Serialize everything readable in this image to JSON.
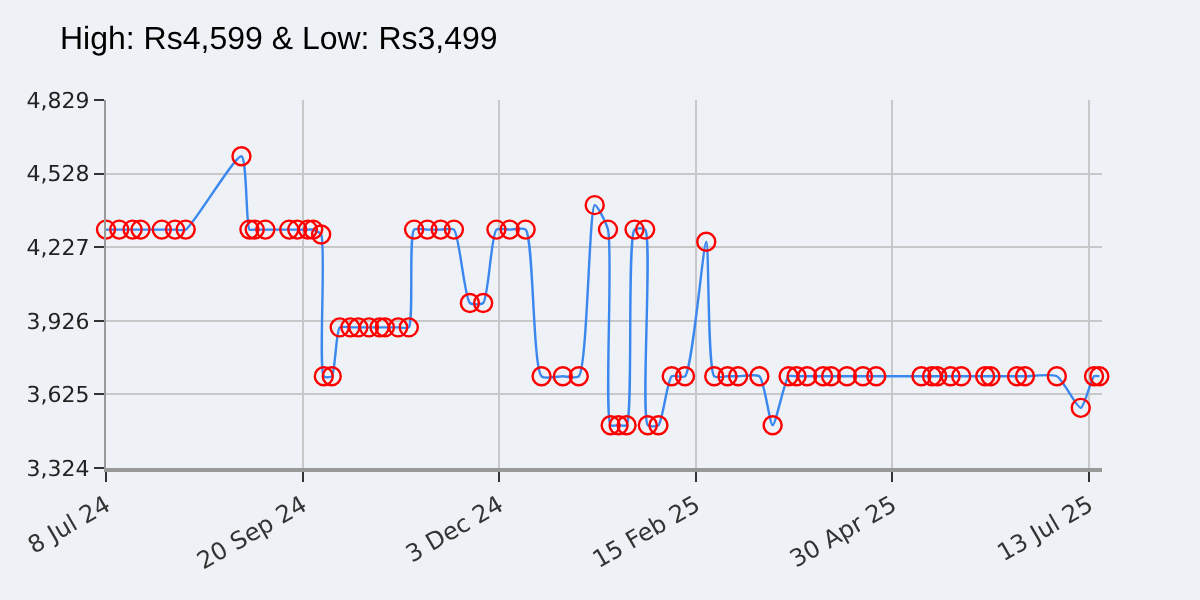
{
  "chart_data": {
    "type": "line",
    "title": "High: Rs4,599 & Low: Rs3,499",
    "x": [
      "2024-07-08",
      "2024-07-13",
      "2024-07-18",
      "2024-07-21",
      "2024-07-29",
      "2024-08-03",
      "2024-08-07",
      "2024-08-28",
      "2024-08-31",
      "2024-09-02",
      "2024-09-06",
      "2024-09-15",
      "2024-09-18",
      "2024-09-22",
      "2024-09-24",
      "2024-09-27",
      "2024-09-28",
      "2024-10-01",
      "2024-10-04",
      "2024-10-08",
      "2024-10-11",
      "2024-10-15",
      "2024-10-19",
      "2024-10-21",
      "2024-10-26",
      "2024-10-30",
      "2024-11-01",
      "2024-11-06",
      "2024-11-11",
      "2024-11-16",
      "2024-11-22",
      "2024-11-27",
      "2024-12-02",
      "2024-12-07",
      "2024-12-13",
      "2024-12-19",
      "2024-12-27",
      "2025-01-02",
      "2025-01-08",
      "2025-01-13",
      "2025-01-14",
      "2025-01-17",
      "2025-01-20",
      "2025-01-23",
      "2025-01-27",
      "2025-01-28",
      "2025-02-01",
      "2025-02-06",
      "2025-02-11",
      "2025-02-19",
      "2025-02-22",
      "2025-02-27",
      "2025-03-03",
      "2025-03-11",
      "2025-03-16",
      "2025-03-22",
      "2025-03-25",
      "2025-03-29",
      "2025-04-04",
      "2025-04-07",
      "2025-04-13",
      "2025-04-19",
      "2025-04-24",
      "2025-05-11",
      "2025-05-15",
      "2025-05-17",
      "2025-05-22",
      "2025-05-26",
      "2025-06-04",
      "2025-06-06",
      "2025-06-16",
      "2025-06-19",
      "2025-07-01",
      "2025-07-10",
      "2025-07-15",
      "2025-07-17"
    ],
    "series": [
      {
        "color": "#3a87f0",
        "colors": [
          "#ff0000",
          "#ff0000",
          "#ff0000",
          "#ff0000",
          "#ff0000",
          "#ff0000",
          "#ff0000",
          "#ff0000",
          "#ff0000",
          "#ff0000",
          "#ff0000",
          "#ff0000",
          "#ff0000",
          "#ff0000",
          "#ff0000",
          "#ff0000",
          "#ff0000",
          "#ff0000",
          "#ff0000",
          "#ff0000",
          "#ff0000",
          "#ff0000",
          "#ff0000",
          "#ff0000",
          "#ff0000",
          "#ff0000",
          "#ff0000",
          "#ff0000",
          "#ff0000",
          "#ff0000",
          "#ff0000",
          "#ff0000",
          "#ff0000",
          "#ff0000",
          "#ff0000",
          "#ff0000",
          "#ff0000",
          "#ff0000",
          "#ff0000",
          "#ff0000",
          "#ff0000",
          "#ff0000",
          "#ff0000",
          "#ff0000",
          "#ff0000",
          "#ff0000",
          "#ff0000",
          "#ff0000",
          "#ff0000",
          "#ff0000",
          "#ff0000",
          "#ff0000",
          "#ff0000",
          "#ff0000",
          "#ff0000",
          "#ff0000",
          "#ff0000",
          "#ff0000",
          "#ff0000",
          "#ff0000",
          "#ff0000",
          "#ff0000",
          "#ff0000",
          "#ff0000",
          "#ff0000",
          "#ff0000",
          "#ff0000",
          "#ff0000",
          "#ff0000",
          "#ff0000",
          "#ff0000",
          "#ff0000",
          "#ff0000",
          "#ff0000",
          "#ff0000",
          "#ff0000"
        ],
        "values": [
          4299,
          4299,
          4299,
          4299,
          4299,
          4299,
          4299,
          4599,
          4299,
          4299,
          4299,
          4299,
          4299,
          4299,
          4299,
          4279,
          3699,
          3699,
          3899,
          3899,
          3899,
          3899,
          3899,
          3899,
          3899,
          3899,
          4299,
          4299,
          4299,
          4299,
          3999,
          3999,
          4299,
          4299,
          4299,
          3699,
          3699,
          3699,
          4399,
          4299,
          3499,
          3499,
          3499,
          4299,
          4299,
          3499,
          3499,
          3699,
          3699,
          4249,
          3699,
          3699,
          3699,
          3699,
          3499,
          3699,
          3699,
          3699,
          3699,
          3699,
          3699,
          3699,
          3699,
          3699,
          3699,
          3699,
          3699,
          3699,
          3699,
          3699,
          3699,
          3699,
          3699,
          3570,
          3699,
          3699
        ]
      }
    ],
    "xlim": [
      "2024-07-08",
      "2025-07-18"
    ],
    "xticks": [
      {
        "value": "2024-07-08",
        "label": "8 Jul 24"
      },
      {
        "value": "2024-09-20",
        "label": "20 Sep 24"
      },
      {
        "value": "2024-12-03",
        "label": "3 Dec 24"
      },
      {
        "value": "2025-02-15",
        "label": "15 Feb 25"
      },
      {
        "value": "2025-04-30",
        "label": "30 Apr 25"
      },
      {
        "value": "2025-07-13",
        "label": "13 Jul 25"
      }
    ],
    "ylim": [
      3324,
      4829
    ],
    "yticks": [
      {
        "value": 3324,
        "label": "3,324"
      },
      {
        "value": 3625,
        "label": "3,625"
      },
      {
        "value": 3926,
        "label": "3,926"
      },
      {
        "value": 4227,
        "label": "4,227"
      },
      {
        "value": 4528,
        "label": "4,528"
      },
      {
        "value": 4829,
        "label": "4,829"
      }
    ],
    "grid": true,
    "marker": "circle"
  }
}
